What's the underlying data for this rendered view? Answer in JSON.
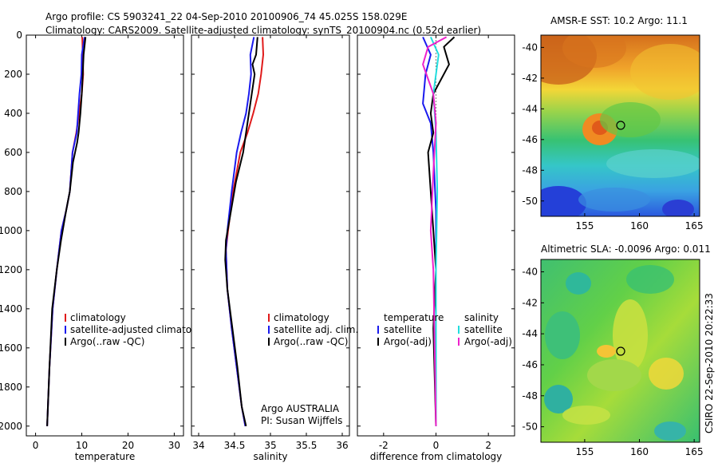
{
  "header": {
    "line1": "Argo profile: CS 5903241_22 04-Sep-2010 20100906_74 45.025S 158.029E",
    "line2": "Climatology: CARS2009. Satellite-adjusted climatology: synTS_20100904.nc (0.52d earlier)"
  },
  "side_label": "CSIRO 22-Sep-2010 20:22:33",
  "colors": {
    "climatology": "#e01a1a",
    "satellite": "#1a1aee",
    "argo": "#000000",
    "sal_sat": "#22dddd",
    "sal_argo": "#ee22cc",
    "marker_edge": "#000000"
  },
  "chart_data": [
    {
      "type": "line",
      "xlabel": "temperature",
      "ylabel": "",
      "xlim": [
        -2,
        32
      ],
      "ylim": [
        2050,
        0
      ],
      "xticks": [
        0,
        10,
        20,
        30
      ],
      "yticks": [
        0,
        200,
        400,
        600,
        800,
        1000,
        1200,
        1400,
        1600,
        1800,
        2000
      ],
      "legend": [
        "climatology",
        "satellite-adjusted climatology",
        "Argo(..raw -QC)"
      ],
      "series": [
        {
          "name": "climatology",
          "color": "#e01a1a",
          "x": [
            10.1,
            10.2,
            10.3,
            10.0,
            9.4,
            8.8,
            8.0,
            7.4,
            6.6,
            5.6,
            4.6,
            3.7,
            3.0,
            2.5
          ],
          "y": [
            10,
            100,
            200,
            300,
            400,
            500,
            600,
            800,
            900,
            1000,
            1200,
            1400,
            1700,
            2000
          ]
        },
        {
          "name": "satellite-adjusted climatology",
          "color": "#1a1aee",
          "x": [
            10.6,
            10.0,
            9.9,
            9.5,
            9.2,
            8.9,
            8.0,
            7.4,
            6.6,
            5.6,
            4.6,
            3.7,
            3.0,
            2.5
          ],
          "y": [
            10,
            100,
            200,
            300,
            400,
            500,
            600,
            800,
            900,
            1000,
            1200,
            1400,
            1700,
            2000
          ]
        },
        {
          "name": "Argo(..raw -QC)",
          "color": "#000000",
          "x": [
            10.8,
            10.4,
            10.2,
            10.0,
            9.7,
            9.3,
            9.0,
            8.1,
            7.4,
            6.6,
            5.5,
            4.6,
            3.6,
            3.0,
            2.5
          ],
          "y": [
            10,
            100,
            200,
            300,
            400,
            500,
            550,
            650,
            800,
            900,
            1050,
            1200,
            1400,
            1700,
            2000
          ]
        }
      ]
    },
    {
      "type": "line",
      "xlabel": "salinity",
      "ylabel": "",
      "xlim": [
        33.9,
        36.1
      ],
      "ylim": [
        2050,
        0
      ],
      "xticks": [
        34,
        34.5,
        35,
        35.5,
        36
      ],
      "legend": [
        "climatology",
        "satellite adj. clim.",
        "Argo(..raw -QC)"
      ],
      "annotation": [
        "Argo AUSTRALIA",
        "PI: Susan Wijffels"
      ],
      "series": [
        {
          "name": "climatology",
          "color": "#e01a1a",
          "x": [
            34.89,
            34.9,
            34.87,
            34.83,
            34.76,
            34.68,
            34.58,
            34.48,
            34.41,
            34.38,
            34.4,
            34.46,
            34.53,
            34.6,
            34.65
          ],
          "y": [
            10,
            100,
            200,
            300,
            400,
            500,
            600,
            800,
            1000,
            1100,
            1300,
            1500,
            1700,
            1900,
            2000
          ]
        },
        {
          "name": "satellite adj. clim.",
          "color": "#1a1aee",
          "x": [
            34.77,
            34.72,
            34.73,
            34.7,
            34.66,
            34.59,
            34.53,
            34.46,
            34.4,
            34.38,
            34.4,
            34.46,
            34.53,
            34.6,
            34.65
          ],
          "y": [
            10,
            100,
            200,
            300,
            400,
            500,
            600,
            800,
            1000,
            1100,
            1300,
            1500,
            1700,
            1900,
            2000
          ]
        },
        {
          "name": "Argo(..raw -QC)",
          "color": "#000000",
          "x": [
            34.82,
            34.8,
            34.75,
            34.78,
            34.72,
            34.68,
            34.62,
            34.52,
            34.45,
            34.38,
            34.37,
            34.4,
            34.47,
            34.54,
            34.6,
            34.66
          ],
          "y": [
            10,
            100,
            150,
            200,
            350,
            450,
            600,
            750,
            900,
            1050,
            1150,
            1300,
            1500,
            1700,
            1900,
            2000
          ]
        }
      ]
    },
    {
      "type": "line",
      "xlabel": "difference from climatology",
      "ylabel": "",
      "xlim": [
        -3,
        3
      ],
      "ylim": [
        2050,
        0
      ],
      "xticks": [
        -2,
        0,
        2
      ],
      "legend_left": [
        "temperature",
        "satellite",
        "Argo(-adj)"
      ],
      "legend_right": [
        "salinity",
        "satellite",
        "Argo(-adj)"
      ],
      "series": [
        {
          "name": "satellite",
          "group": "temperature",
          "color": "#1a1aee",
          "x": [
            -0.5,
            -0.2,
            -0.4,
            -0.5,
            -0.2,
            -0.1,
            0.0,
            0.0,
            0.0
          ],
          "y": [
            10,
            100,
            200,
            350,
            450,
            600,
            900,
            1300,
            2000
          ]
        },
        {
          "name": "Argo(-adj)",
          "group": "temperature",
          "color": "#000000",
          "x": [
            0.7,
            0.3,
            0.5,
            -0.1,
            -0.2,
            -0.1,
            -0.3,
            -0.2,
            -0.1,
            0.0,
            -0.1,
            0.0
          ],
          "y": [
            10,
            60,
            150,
            300,
            400,
            500,
            600,
            800,
            1000,
            1200,
            1500,
            2000
          ]
        },
        {
          "name": "satellite",
          "group": "salinity",
          "color": "#22dddd",
          "x": [
            -0.2,
            0.1,
            -0.1,
            0.0,
            0.05,
            0.0,
            0.0
          ],
          "y": [
            10,
            100,
            300,
            500,
            800,
            1200,
            2000
          ]
        },
        {
          "name": "Argo(-adj)",
          "group": "salinity",
          "color": "#ee22cc",
          "x": [
            0.4,
            -0.3,
            -0.5,
            -0.1,
            0.0,
            -0.1,
            -0.2,
            -0.1,
            0.0
          ],
          "y": [
            10,
            60,
            150,
            300,
            450,
            700,
            1000,
            1200,
            2000
          ]
        }
      ]
    },
    {
      "type": "heatmap",
      "title": "AMSR-E SST: 10.2  Argo: 11.1",
      "xlim": [
        151,
        165.5
      ],
      "ylim": [
        -51,
        -39.2
      ],
      "xticks": [
        155,
        160,
        165
      ],
      "yticks": [
        -40,
        -42,
        -44,
        -46,
        -48,
        -50
      ],
      "marker": {
        "lon": 158.029,
        "lat": -45.025
      }
    },
    {
      "type": "heatmap",
      "title": "Altimetric SLA: -0.0096  Argo: 0.011",
      "xlim": [
        151,
        165.5
      ],
      "ylim": [
        -51,
        -39.2
      ],
      "xticks": [
        155,
        160,
        165
      ],
      "yticks": [
        -40,
        -42,
        -44,
        -46,
        -48,
        -50
      ],
      "marker": {
        "lon": 158.029,
        "lat": -45.025
      }
    }
  ]
}
